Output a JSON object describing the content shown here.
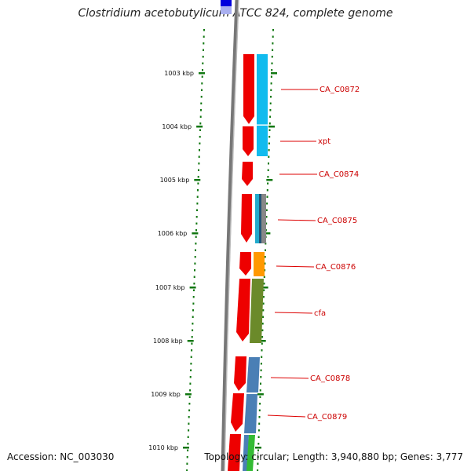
{
  "title": "Clostridium acetobutylicum ATCC 824, complete genome",
  "footer": {
    "accession": "Accession: NC_003030",
    "topology": "Topology: circular; Length: 3,940,880 bp; Genes: 3,777"
  },
  "scale_ticks": [
    "1003 kbp",
    "1004 kbp",
    "1005 kbp",
    "1006 kbp",
    "1007 kbp",
    "1008 kbp",
    "1009 kbp",
    "1010 kbp"
  ],
  "gene_labels": [
    "CA_C0872",
    "xpt",
    "CA_C0874",
    "CA_C0875",
    "CA_C0876",
    "cfa",
    "CA_C0878",
    "CA_C0879"
  ],
  "colors": {
    "cds_red": "#ee0000",
    "cyan": "#11bbee",
    "teal": "#22aacc",
    "gray": "#888888",
    "orange": "#ff9900",
    "olive": "#6b8a2a",
    "steelblue": "#4a7fb5",
    "green": "#33bb33",
    "label_red": "#cc0000",
    "tick_green": "#117711"
  }
}
